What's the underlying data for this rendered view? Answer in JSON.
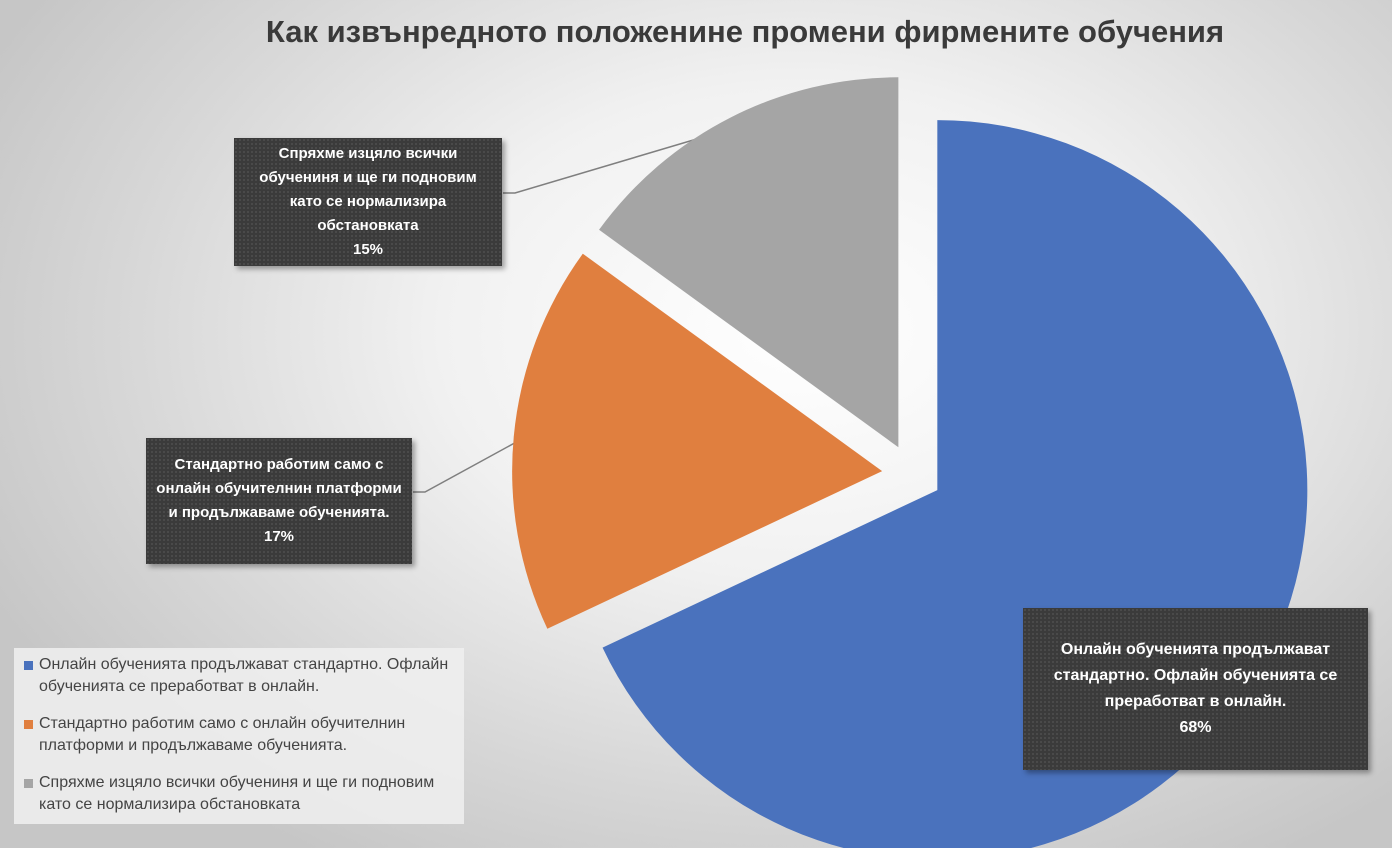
{
  "title": "Как извънредното положенине промени фирмените обучения",
  "chart_data": {
    "type": "pie",
    "title": "Как извънредното положенине промени фирмените обучения",
    "start_angle_deg": 0,
    "direction": "clockwise",
    "exploded": true,
    "slices": [
      {
        "label": "Онлайн обученията продължават стандартно. Офлайн обученията се преработват в онлайн.",
        "value": 68,
        "pct_label": "68%",
        "color": "#4a72bd"
      },
      {
        "label": "Стандартно работим само с онлайн обучителнин платформи и продължаваме обученията.",
        "value": 17,
        "pct_label": "17%",
        "color": "#e07f3f"
      },
      {
        "label": "Спряхме изцяло всички обучениня и ще ги подновим като се нормализира обстановката",
        "value": 15,
        "pct_label": "15%",
        "color": "#a5a5a5"
      }
    ],
    "legend_position": "bottom-left"
  }
}
